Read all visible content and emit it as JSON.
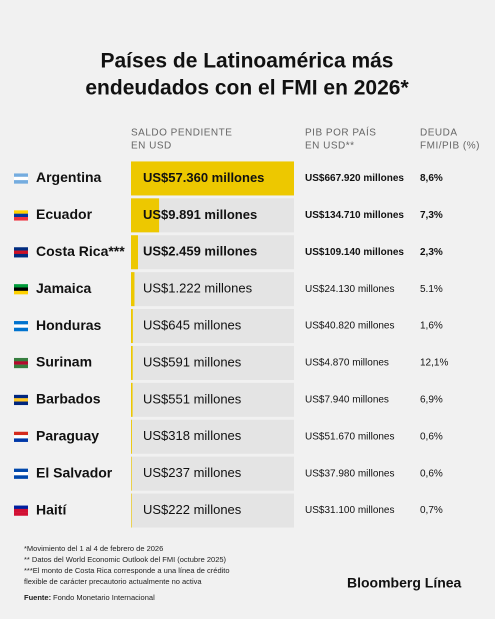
{
  "chart_data": {
    "type": "bar",
    "orientation": "horizontal",
    "title": [
      "Países de Latinoamérica más",
      "endeudados con el FMI en 2026*"
    ],
    "column_headers": {
      "outstanding": [
        "SALDO PENDIENTE",
        "EN USD"
      ],
      "gdp": [
        "PIB POR PAÍS",
        "EN USD**"
      ],
      "ratio": [
        "DEUDA",
        "FMI/PIB (%)"
      ]
    },
    "categories": [
      "Argentina",
      "Ecuador",
      "Costa Rica***",
      "Jamaica",
      "Honduras",
      "Surinam",
      "Barbados",
      "Paraguay",
      "El Salvador",
      "Haití"
    ],
    "values": [
      57360,
      9891,
      2459,
      1222,
      645,
      591,
      551,
      318,
      237,
      222
    ],
    "value_labels": [
      "US$57.360 millones",
      "US$9.891 millones",
      "US$2.459 millones",
      "US$1.222 millones",
      "US$645 millones",
      "US$591 millones",
      "US$551 millones",
      "US$318 millones",
      "US$237 millones",
      "US$222 millones"
    ],
    "color": "#edc800",
    "gdp": [
      667920,
      134710,
      109140,
      24130,
      40820,
      4870,
      7940,
      51670,
      37980,
      31100
    ],
    "gdp_labels": [
      "US$667.920 millones",
      "US$134.710 millones",
      "US$109.140 millones",
      "US$24.130 millones",
      "US$40.820 millones",
      "US$4.870 millones",
      "US$7.940 millones",
      "US$51.670 millones",
      "US$37.980 millones",
      "US$31.100 millones"
    ],
    "ratio": [
      8.6,
      7.3,
      2.3,
      5.1,
      1.6,
      12.1,
      6.9,
      0.6,
      0.6,
      0.7
    ],
    "ratio_labels": [
      "8,6%",
      "7,3%",
      "2,3%",
      "5.1%",
      "1,6%",
      "12,1%",
      "6,9%",
      "0,6%",
      "0,6%",
      "0,7%"
    ],
    "footnotes": [
      "*Movimiento del 1 al 4 de febrero de 2026",
      "** Datos del World Economic Outlook del FMI (octubre 2025)",
      "***El monto de Costa Rica corresponde a una línea de crédito",
      "flexible de carácter precautorio actualmente no activa"
    ],
    "source_label": "Fuente:",
    "source": "Fondo Monetario Internacional",
    "brand": "Bloomberg Línea"
  }
}
